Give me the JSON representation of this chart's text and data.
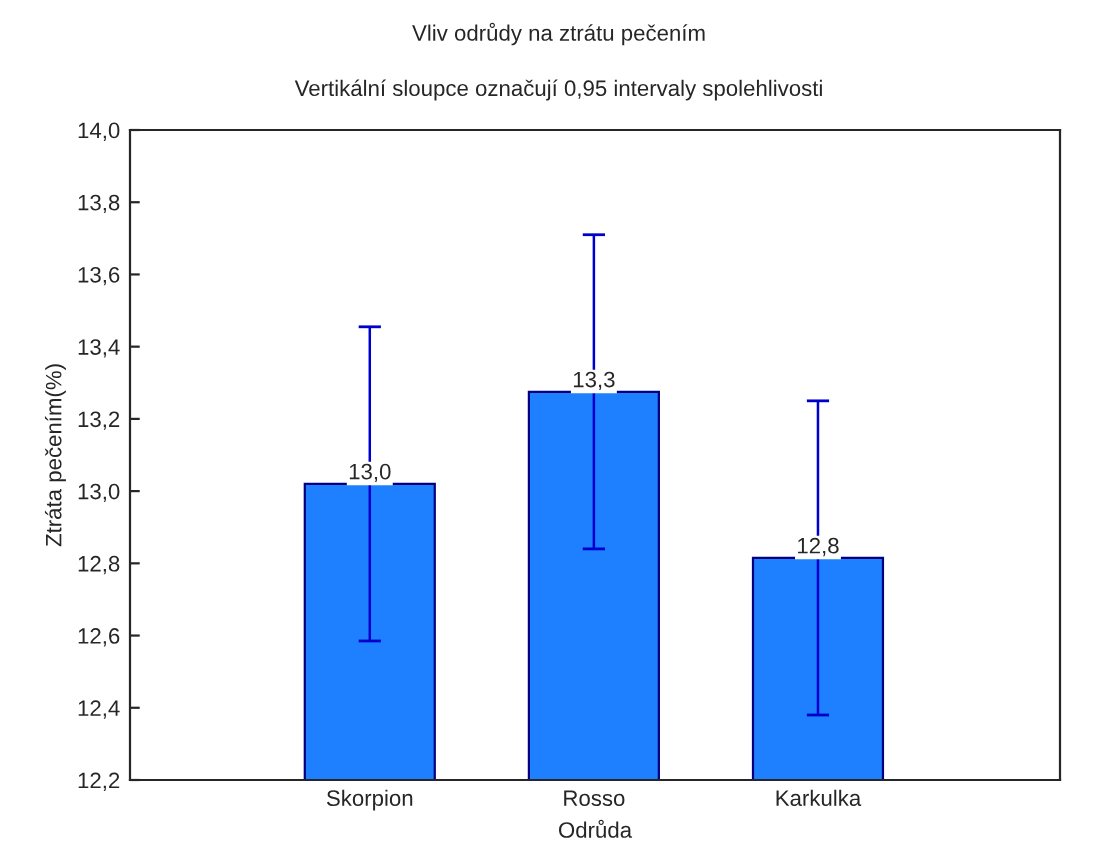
{
  "chart_data": {
    "type": "bar",
    "title": "Vliv odrůdy na ztrátu pečením",
    "subtitle": "Vertikální sloupce označují 0,95 intervaly spolehlivosti",
    "xlabel": "Odrůda",
    "ylabel": "Ztráta pečením(%)",
    "categories": [
      "Skorpion",
      "Rosso",
      "Karkulka"
    ],
    "values": [
      13.02,
      13.275,
      12.815
    ],
    "errors": [
      0.435,
      0.435,
      0.435
    ],
    "value_labels": [
      "13,0",
      "13,3",
      "12,8"
    ],
    "color": "#1e80ff",
    "ylim": [
      12.2,
      14.0
    ],
    "yticks": [
      {
        "value": 12.2,
        "label": "12,2"
      },
      {
        "value": 12.4,
        "label": "12,4"
      },
      {
        "value": 12.6,
        "label": "12,6"
      },
      {
        "value": 12.8,
        "label": "12,8"
      },
      {
        "value": 13.0,
        "label": "13,0"
      },
      {
        "value": 13.2,
        "label": "13,2"
      },
      {
        "value": 13.4,
        "label": "13,4"
      },
      {
        "value": 13.6,
        "label": "13,6"
      },
      {
        "value": 13.8,
        "label": "13,8"
      },
      {
        "value": 14.0,
        "label": "14,0"
      }
    ]
  }
}
